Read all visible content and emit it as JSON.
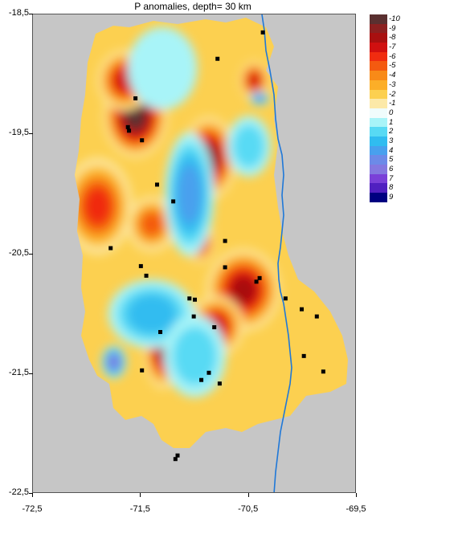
{
  "title": "P anomalies, depth=  30 km",
  "axes": {
    "y_ticks": [
      "-18,5",
      "-19,5",
      "-20,5",
      "-21,5",
      "-22,5"
    ],
    "x_ticks": [
      "-72,5",
      "-71,5",
      "-70,5",
      "-69,5"
    ],
    "xlim": [
      -72.5,
      -69.5
    ],
    "ylim": [
      -22.5,
      -18.5
    ]
  },
  "legend": [
    {
      "label": "-10",
      "color": "#5a3030"
    },
    {
      "label": "-9",
      "color": "#8b2020"
    },
    {
      "label": "-8",
      "color": "#a81010"
    },
    {
      "label": "-7",
      "color": "#d01010"
    },
    {
      "label": "-6",
      "color": "#f02c10"
    },
    {
      "label": "-5",
      "color": "#f45a10"
    },
    {
      "label": "-4",
      "color": "#f88a18"
    },
    {
      "label": "-3",
      "color": "#fcae28"
    },
    {
      "label": "-2",
      "color": "#fcd050"
    },
    {
      "label": "-1",
      "color": "#fce9a8"
    },
    {
      "label": "0",
      "color": "#f0fcfc"
    },
    {
      "label": "1",
      "color": "#a8f4f8"
    },
    {
      "label": "2",
      "color": "#58daf4"
    },
    {
      "label": "3",
      "color": "#30bcf0"
    },
    {
      "label": "4",
      "color": "#48a0ee"
    },
    {
      "label": "5",
      "color": "#6c8ae8"
    },
    {
      "label": "6",
      "color": "#8478e0"
    },
    {
      "label": "7",
      "color": "#7a40d8"
    },
    {
      "label": "8",
      "color": "#5020c0"
    },
    {
      "label": "9",
      "color": "#000080"
    }
  ],
  "colors": {
    "no_data": "#c6c6c6",
    "coastline": "#1f78d8",
    "station": "#000000"
  },
  "stations": [
    {
      "lon": -70.37,
      "lat": -18.65
    },
    {
      "lon": -70.79,
      "lat": -18.87
    },
    {
      "lon": -71.55,
      "lat": -19.2
    },
    {
      "lon": -71.62,
      "lat": -19.44
    },
    {
      "lon": -71.61,
      "lat": -19.47
    },
    {
      "lon": -71.49,
      "lat": -19.55
    },
    {
      "lon": -71.35,
      "lat": -19.92
    },
    {
      "lon": -71.2,
      "lat": -20.06
    },
    {
      "lon": -71.78,
      "lat": -20.45
    },
    {
      "lon": -70.72,
      "lat": -20.39
    },
    {
      "lon": -71.5,
      "lat": -20.6
    },
    {
      "lon": -71.45,
      "lat": -20.68
    },
    {
      "lon": -70.72,
      "lat": -20.61
    },
    {
      "lon": -70.4,
      "lat": -20.7
    },
    {
      "lon": -70.43,
      "lat": -20.73
    },
    {
      "lon": -71.32,
      "lat": -21.15
    },
    {
      "lon": -70.16,
      "lat": -20.87
    },
    {
      "lon": -71.05,
      "lat": -20.87
    },
    {
      "lon": -71.0,
      "lat": -20.88
    },
    {
      "lon": -71.01,
      "lat": -21.02
    },
    {
      "lon": -70.82,
      "lat": -21.11
    },
    {
      "lon": -70.01,
      "lat": -20.96
    },
    {
      "lon": -69.87,
      "lat": -21.02
    },
    {
      "lon": -69.99,
      "lat": -21.35
    },
    {
      "lon": -71.49,
      "lat": -21.47
    },
    {
      "lon": -70.87,
      "lat": -21.49
    },
    {
      "lon": -70.94,
      "lat": -21.55
    },
    {
      "lon": -70.77,
      "lat": -21.58
    },
    {
      "lon": -69.81,
      "lat": -21.48
    },
    {
      "lon": -71.16,
      "lat": -22.18
    },
    {
      "lon": -71.18,
      "lat": -22.21
    }
  ],
  "anomaly_patches": [
    {
      "lon": -71.55,
      "lat": -19.35,
      "value": -10,
      "rx": 0.26,
      "ry": 0.3
    },
    {
      "lon": -71.65,
      "lat": -19.05,
      "value": -7,
      "rx": 0.22,
      "ry": 0.22
    },
    {
      "lon": -70.87,
      "lat": -19.7,
      "value": -9,
      "rx": 0.22,
      "ry": 0.3
    },
    {
      "lon": -71.9,
      "lat": -20.1,
      "value": -6,
      "rx": 0.28,
      "ry": 0.35
    },
    {
      "lon": -71.4,
      "lat": -20.25,
      "value": -5,
      "rx": 0.2,
      "ry": 0.2
    },
    {
      "lon": -70.95,
      "lat": -20.4,
      "value": -7,
      "rx": 0.12,
      "ry": 0.15
    },
    {
      "lon": -70.55,
      "lat": -20.8,
      "value": -8,
      "rx": 0.3,
      "ry": 0.3
    },
    {
      "lon": -70.8,
      "lat": -21.1,
      "value": -7,
      "rx": 0.22,
      "ry": 0.22
    },
    {
      "lon": -71.3,
      "lat": -21.3,
      "value": -8,
      "rx": 0.15,
      "ry": 0.28
    },
    {
      "lon": -70.45,
      "lat": -19.05,
      "value": -7,
      "rx": 0.12,
      "ry": 0.14
    },
    {
      "lon": -71.05,
      "lat": -20.0,
      "value": 4,
      "rx": 0.2,
      "ry": 0.45
    },
    {
      "lon": -71.4,
      "lat": -21.0,
      "value": 3,
      "rx": 0.35,
      "ry": 0.25
    },
    {
      "lon": -71.75,
      "lat": -21.4,
      "value": 6,
      "rx": 0.1,
      "ry": 0.12
    },
    {
      "lon": -71.0,
      "lat": -21.35,
      "value": 2,
      "rx": 0.25,
      "ry": 0.3
    },
    {
      "lon": -70.5,
      "lat": -19.6,
      "value": 2,
      "rx": 0.18,
      "ry": 0.22
    },
    {
      "lon": -71.3,
      "lat": -18.95,
      "value": 1,
      "rx": 0.28,
      "ry": 0.3
    },
    {
      "lon": -70.4,
      "lat": -19.2,
      "value": 5,
      "rx": 0.08,
      "ry": 0.05
    }
  ]
}
